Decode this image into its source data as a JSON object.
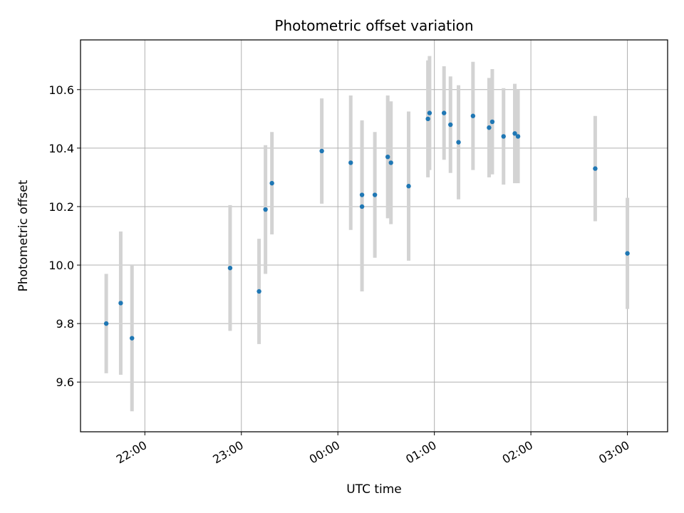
{
  "chart_data": {
    "type": "scatter",
    "title": "Photometric offset variation",
    "xlabel": "UTC time",
    "ylabel": "Photometric offset",
    "grid": true,
    "x_axis": "time",
    "xlim": [
      "21:20",
      "03:25"
    ],
    "ylim": [
      9.43,
      10.77
    ],
    "x_ticks": [
      "22:00",
      "23:00",
      "00:00",
      "01:00",
      "02:00",
      "03:00"
    ],
    "y_ticks": [
      9.6,
      9.8,
      10.0,
      10.2,
      10.4,
      10.6
    ],
    "marker_color": "#1f77b4",
    "errorbar_color": "#d3d3d3",
    "series": [
      {
        "points": [
          {
            "x": "21:36",
            "y": 9.8,
            "err": 0.17
          },
          {
            "x": "21:45",
            "y": 9.87,
            "err": 0.245
          },
          {
            "x": "21:52",
            "y": 9.75,
            "err": 0.25
          },
          {
            "x": "22:53",
            "y": 9.99,
            "err": 0.215
          },
          {
            "x": "23:11",
            "y": 9.91,
            "err": 0.18
          },
          {
            "x": "23:15",
            "y": 10.19,
            "err": 0.22
          },
          {
            "x": "23:19",
            "y": 10.28,
            "err": 0.175
          },
          {
            "x": "23:50",
            "y": 10.39,
            "err": 0.18
          },
          {
            "x": "00:08",
            "y": 10.35,
            "err": 0.23
          },
          {
            "x": "00:15",
            "y": 10.24,
            "err": 0.255
          },
          {
            "x": "00:15",
            "y": 10.2,
            "err": 0.29
          },
          {
            "x": "00:23",
            "y": 10.24,
            "err": 0.215
          },
          {
            "x": "00:31",
            "y": 10.37,
            "err": 0.21
          },
          {
            "x": "00:33",
            "y": 10.35,
            "err": 0.21
          },
          {
            "x": "00:44",
            "y": 10.27,
            "err": 0.255
          },
          {
            "x": "00:56",
            "y": 10.5,
            "err": 0.2
          },
          {
            "x": "00:57",
            "y": 10.52,
            "err": 0.195
          },
          {
            "x": "01:06",
            "y": 10.52,
            "err": 0.16
          },
          {
            "x": "01:10",
            "y": 10.48,
            "err": 0.165
          },
          {
            "x": "01:15",
            "y": 10.42,
            "err": 0.195
          },
          {
            "x": "01:24",
            "y": 10.51,
            "err": 0.185
          },
          {
            "x": "01:34",
            "y": 10.47,
            "err": 0.17
          },
          {
            "x": "01:36",
            "y": 10.49,
            "err": 0.18
          },
          {
            "x": "01:43",
            "y": 10.44,
            "err": 0.165
          },
          {
            "x": "01:50",
            "y": 10.45,
            "err": 0.17
          },
          {
            "x": "01:52",
            "y": 10.44,
            "err": 0.16
          },
          {
            "x": "02:40",
            "y": 10.33,
            "err": 0.18
          },
          {
            "x": "03:00",
            "y": 10.04,
            "err": 0.19
          }
        ]
      }
    ]
  }
}
